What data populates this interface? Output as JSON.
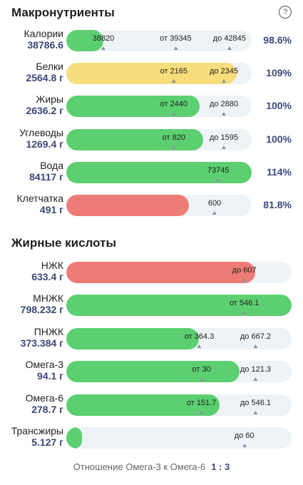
{
  "macro": {
    "title": "Макронутриенты",
    "rows": [
      {
        "name": "Калории",
        "amount": "38786.6",
        "fill": 0.2,
        "color": "#5ccf71",
        "marks": [
          {
            "text": "38820",
            "pos": 0.2
          },
          {
            "text": "от 39345",
            "pos": 0.59
          },
          {
            "text": "до 42845",
            "pos": 0.88
          }
        ],
        "pct": "98.6%"
      },
      {
        "name": "Белки",
        "amount": "2564.8 г",
        "fill": 0.92,
        "color": "#f8dd7c",
        "marks": [
          {
            "text": "от 2165",
            "pos": 0.58
          },
          {
            "text": "до 2345",
            "pos": 0.85
          }
        ],
        "pct": "109%"
      },
      {
        "name": "Жиры",
        "amount": "2636.2 г",
        "fill": 0.72,
        "color": "#5ccf71",
        "marks": [
          {
            "text": "от 2440",
            "pos": 0.58
          },
          {
            "text": "до 2880",
            "pos": 0.85
          }
        ],
        "pct": "100%"
      },
      {
        "name": "Углеводы",
        "amount": "1269.4 г",
        "fill": 0.74,
        "color": "#5ccf71",
        "marks": [
          {
            "text": "от 820",
            "pos": 0.58
          },
          {
            "text": "до 1595",
            "pos": 0.85
          }
        ],
        "pct": "100%"
      },
      {
        "name": "Вода",
        "amount": "84117 г",
        "fill": 1.0,
        "color": "#5ccf71",
        "marks": [
          {
            "text": "73745",
            "pos": 0.82
          }
        ],
        "pct": "114%"
      },
      {
        "name": "Клетчатка",
        "amount": "491 г",
        "fill": 0.66,
        "color": "#ef7b77",
        "marks": [
          {
            "text": "600",
            "pos": 0.8
          }
        ],
        "pct": "81.8%"
      }
    ]
  },
  "fatty": {
    "title": "Жирные кислоты",
    "rows": [
      {
        "name": "НЖК",
        "amount": "633.4 г",
        "fill": 0.84,
        "color": "#ef7b77",
        "marks": [
          {
            "text": "до 607",
            "pos": 0.79
          }
        ],
        "pct": ""
      },
      {
        "name": "МНЖК",
        "amount": "798.232 г",
        "fill": 1.0,
        "color": "#5ccf71",
        "marks": [
          {
            "text": "от 546.1",
            "pos": 0.79
          }
        ],
        "pct": ""
      },
      {
        "name": "ПНЖК",
        "amount": "373.384 г",
        "fill": 0.59,
        "color": "#5ccf71",
        "marks": [
          {
            "text": "от 364.3",
            "pos": 0.59
          },
          {
            "text": "до 667.2",
            "pos": 0.84
          }
        ],
        "pct": ""
      },
      {
        "name": "Омега-3",
        "amount": "94.1 г",
        "fill": 0.77,
        "color": "#5ccf71",
        "marks": [
          {
            "text": "от 30",
            "pos": 0.6
          },
          {
            "text": "до 121.3",
            "pos": 0.84
          }
        ],
        "pct": ""
      },
      {
        "name": "Омега-6",
        "amount": "278.7 г",
        "fill": 0.68,
        "color": "#5ccf71",
        "marks": [
          {
            "text": "от 151.7",
            "pos": 0.6
          },
          {
            "text": "до 546.1",
            "pos": 0.84
          }
        ],
        "pct": ""
      },
      {
        "name": "Трансжиры",
        "amount": "5.127 г",
        "fill": 0.07,
        "color": "#5ccf71",
        "marks": [
          {
            "text": "до 60",
            "pos": 0.79
          }
        ],
        "pct": ""
      }
    ]
  },
  "ratio": {
    "label": "Отношение Омега-3 к Омега-6",
    "value": "1 : 3"
  },
  "help_glyph": "?"
}
